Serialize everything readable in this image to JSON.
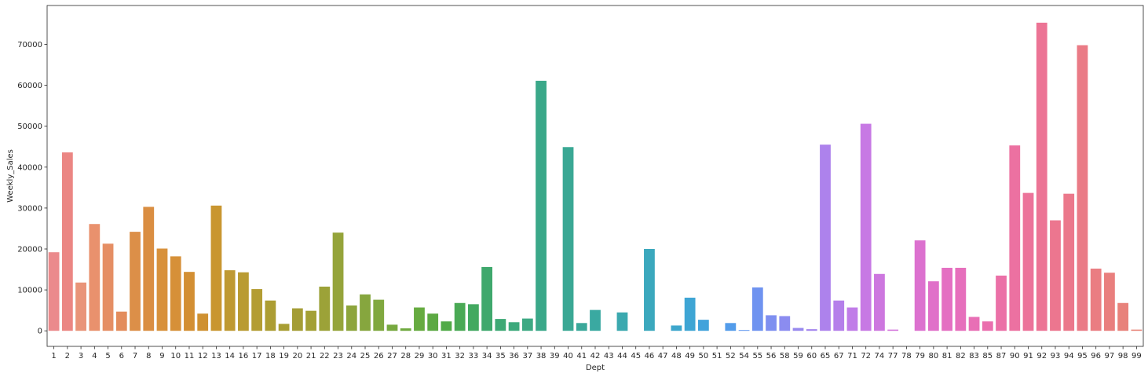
{
  "chart_data": {
    "type": "bar",
    "xlabel": "Dept",
    "ylabel": "Weekly_Sales",
    "ylim": [
      -3800,
      79500
    ],
    "yticks": [
      0,
      10000,
      20000,
      30000,
      40000,
      50000,
      60000,
      70000
    ],
    "grid": false,
    "legend": "none",
    "categories": [
      "1",
      "2",
      "3",
      "4",
      "5",
      "6",
      "7",
      "8",
      "9",
      "10",
      "11",
      "12",
      "13",
      "14",
      "16",
      "17",
      "18",
      "19",
      "20",
      "21",
      "22",
      "23",
      "24",
      "25",
      "26",
      "27",
      "28",
      "29",
      "30",
      "31",
      "32",
      "33",
      "34",
      "35",
      "36",
      "37",
      "38",
      "39",
      "40",
      "41",
      "42",
      "43",
      "44",
      "45",
      "46",
      "47",
      "48",
      "49",
      "50",
      "51",
      "52",
      "54",
      "55",
      "56",
      "58",
      "59",
      "60",
      "65",
      "67",
      "71",
      "72",
      "74",
      "77",
      "78",
      "79",
      "80",
      "81",
      "82",
      "83",
      "85",
      "87",
      "90",
      "91",
      "92",
      "93",
      "94",
      "95",
      "96",
      "97",
      "98",
      "99"
    ],
    "values": [
      19200,
      43600,
      11800,
      26100,
      21300,
      4700,
      24200,
      30300,
      20100,
      18200,
      14400,
      4200,
      30600,
      14800,
      14300,
      10200,
      7400,
      1700,
      5500,
      4900,
      10800,
      24000,
      6200,
      8900,
      7600,
      1500,
      600,
      5700,
      4200,
      2300,
      6800,
      6500,
      15600,
      2900,
      2100,
      3000,
      61100,
      0,
      44900,
      1900,
      5100,
      0,
      4500,
      0,
      20000,
      0,
      1300,
      8100,
      2700,
      0,
      1900,
      200,
      10600,
      3800,
      3600,
      700,
      400,
      45500,
      7400,
      5700,
      50600,
      13900,
      300,
      0,
      22100,
      12100,
      15400,
      15400,
      3400,
      2300,
      13500,
      45300,
      33700,
      75300,
      27000,
      33500,
      69800,
      15200,
      14200,
      6800,
      300
    ],
    "colors": [
      "#eb8a8c",
      "#eb8683",
      "#e99479",
      "#e9916d",
      "#e58e64",
      "#e38c5c",
      "#dc8f48",
      "#da8e42",
      "#d8913b",
      "#d69038",
      "#d38f33",
      "#cf9131",
      "#c99630",
      "#bf9932",
      "#b99b32",
      "#b39d33",
      "#ac9d33",
      "#a89e33",
      "#a49d35",
      "#a3a035",
      "#9ca238",
      "#95a43a",
      "#8da53c",
      "#86a63e",
      "#80a83f",
      "#77a93f",
      "#6fa93f",
      "#66ab40",
      "#5ca943",
      "#51aa48",
      "#4aa955",
      "#43a960",
      "#3fa86d",
      "#3ea975",
      "#3da97c",
      "#3da983",
      "#3aa889",
      "#3aa88f",
      "#3aa894",
      "#3aa89a",
      "#3aa9a1",
      "#3da8a8",
      "#3ba9af",
      "#3ba8b6",
      "#3ba8bd",
      "#3ca7c4",
      "#3da6cc",
      "#3ea5d4",
      "#42a3db",
      "#48a0e2",
      "#539cea",
      "#6197ef",
      "#6f93f0",
      "#7e8ff0",
      "#8b8cf0",
      "#9889ee",
      "#a384ed",
      "#ad82ec",
      "#b57fea",
      "#c07ce8",
      "#c779e4",
      "#cd77df",
      "#d374da",
      "#d872d5",
      "#dc71cf",
      "#e070c9",
      "#e46fc2",
      "#e66fbc",
      "#e86fb5",
      "#ea6fae",
      "#eb70a7",
      "#ec71a1",
      "#ec739a",
      "#ec7495",
      "#ec768f",
      "#eb788b",
      "#ea7b86",
      "#ea7d82",
      "#e97f7e",
      "#e8827b",
      "#e78478"
    ]
  }
}
